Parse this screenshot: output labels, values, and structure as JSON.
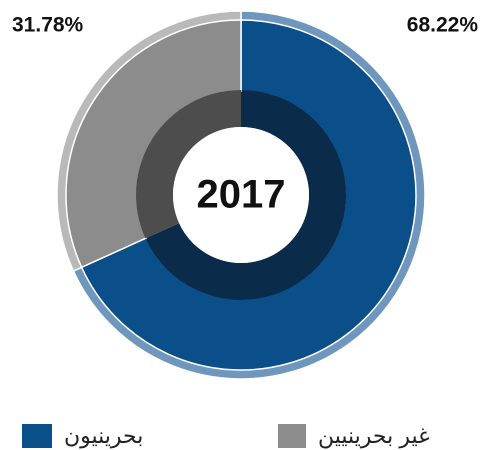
{
  "chart_data": {
    "type": "donut",
    "center_label": "2017",
    "categories": [
      "بحرينيون",
      "غير بحرينيين"
    ],
    "values": [
      68.22,
      31.78
    ],
    "value_labels": [
      "68.22%",
      "31.78%"
    ],
    "colors": [
      "#0b4f8a",
      "#8c8c8c"
    ],
    "rim_colors": [
      "#6f97bd",
      "#b9b9b9"
    ],
    "inner_colors": [
      "#0b2b4a",
      "#4d4d4d"
    ]
  }
}
